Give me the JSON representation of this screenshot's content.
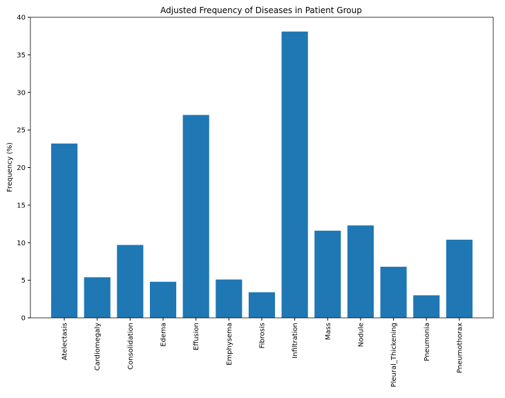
{
  "chart_data": {
    "type": "bar",
    "title": "Adjusted Frequency of Diseases in Patient Group",
    "y_label": "Frequency (%)",
    "categories": [
      "Atelectasis",
      "Cardiomegaly",
      "Consolidation",
      "Edema",
      "Effusion",
      "Emphysema",
      "Fibrosis",
      "Infiltration",
      "Mass",
      "Nodule",
      "Pleural_Thickening",
      "Pneumonia",
      "Pneumothorax"
    ],
    "values": [
      23.2,
      5.4,
      9.7,
      4.8,
      27.0,
      5.1,
      3.4,
      38.1,
      11.6,
      12.3,
      6.8,
      3.0,
      10.4
    ],
    "color": "#1f77b4",
    "ylim": [
      0,
      40
    ],
    "yticks": [
      0,
      5,
      10,
      15,
      20,
      25,
      30,
      35,
      40
    ],
    "grid": false
  }
}
